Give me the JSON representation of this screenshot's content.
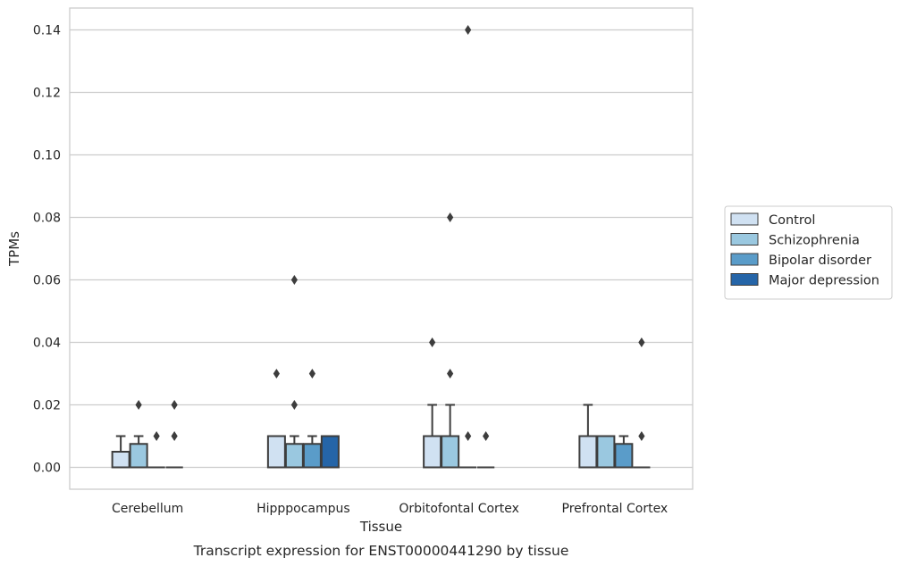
{
  "chart_data": {
    "type": "box",
    "xlabel": "Tissue",
    "ylabel": "TPMs",
    "caption": "Transcript expression for ENST00000441290 by tissue",
    "ylim": [
      -0.007,
      0.147
    ],
    "yticks": [
      0.0,
      0.02,
      0.04,
      0.06,
      0.08,
      0.1,
      0.12,
      0.14
    ],
    "ytick_labels": [
      "0.00",
      "0.02",
      "0.04",
      "0.06",
      "0.08",
      "0.10",
      "0.12",
      "0.14"
    ],
    "grid": "horizontal",
    "legend_position": "center-right",
    "categories": [
      "Cerebellum",
      "Hipppocampus",
      "Orbitofontal Cortex",
      "Prefrontal Cortex"
    ],
    "series": [
      {
        "name": "Control",
        "color": "#d0e1f2",
        "boxes": [
          {
            "whisker_low": 0,
            "q1": 0,
            "median": 0,
            "q3": 0.005,
            "whisker_high": 0.01,
            "outliers": []
          },
          {
            "whisker_low": 0,
            "q1": 0,
            "median": 0,
            "q3": 0.01,
            "whisker_high": 0.01,
            "outliers": [
              0.03
            ]
          },
          {
            "whisker_low": 0,
            "q1": 0,
            "median": 0,
            "q3": 0.01,
            "whisker_high": 0.02,
            "outliers": [
              0.04
            ]
          },
          {
            "whisker_low": 0,
            "q1": 0,
            "median": 0,
            "q3": 0.01,
            "whisker_high": 0.02,
            "outliers": []
          }
        ]
      },
      {
        "name": "Schizophrenia",
        "color": "#9ac8e0",
        "boxes": [
          {
            "whisker_low": 0,
            "q1": 0,
            "median": 0,
            "q3": 0.0075,
            "whisker_high": 0.01,
            "outliers": [
              0.02
            ]
          },
          {
            "whisker_low": 0,
            "q1": 0,
            "median": 0,
            "q3": 0.0075,
            "whisker_high": 0.01,
            "outliers": [
              0.02,
              0.06
            ]
          },
          {
            "whisker_low": 0,
            "q1": 0,
            "median": 0,
            "q3": 0.01,
            "whisker_high": 0.02,
            "outliers": [
              0.03,
              0.08
            ]
          },
          {
            "whisker_low": 0,
            "q1": 0,
            "median": 0,
            "q3": 0.01,
            "whisker_high": 0.01,
            "outliers": []
          }
        ]
      },
      {
        "name": "Bipolar disorder",
        "color": "#5a9cc9",
        "boxes": [
          {
            "whisker_low": 0,
            "q1": 0,
            "median": 0,
            "q3": 0,
            "whisker_high": 0,
            "outliers": [
              0.01
            ]
          },
          {
            "whisker_low": 0,
            "q1": 0,
            "median": 0,
            "q3": 0.0075,
            "whisker_high": 0.01,
            "outliers": [
              0.03
            ]
          },
          {
            "whisker_low": 0,
            "q1": 0,
            "median": 0,
            "q3": 0,
            "whisker_high": 0,
            "outliers": [
              0.01,
              0.14
            ]
          },
          {
            "whisker_low": 0,
            "q1": 0,
            "median": 0,
            "q3": 0.0075,
            "whisker_high": 0.01,
            "outliers": []
          }
        ]
      },
      {
        "name": "Major depression",
        "color": "#2565a8",
        "boxes": [
          {
            "whisker_low": 0,
            "q1": 0,
            "median": 0,
            "q3": 0,
            "whisker_high": 0,
            "outliers": [
              0.01,
              0.02
            ]
          },
          {
            "whisker_low": 0,
            "q1": 0,
            "median": 0,
            "q3": 0.01,
            "whisker_high": 0.01,
            "outliers": []
          },
          {
            "whisker_low": 0,
            "q1": 0,
            "median": 0,
            "q3": 0,
            "whisker_high": 0,
            "outliers": [
              0.01
            ]
          },
          {
            "whisker_low": 0,
            "q1": 0,
            "median": 0,
            "q3": 0,
            "whisker_high": 0,
            "outliers": [
              0.01,
              0.04
            ]
          }
        ]
      }
    ]
  }
}
